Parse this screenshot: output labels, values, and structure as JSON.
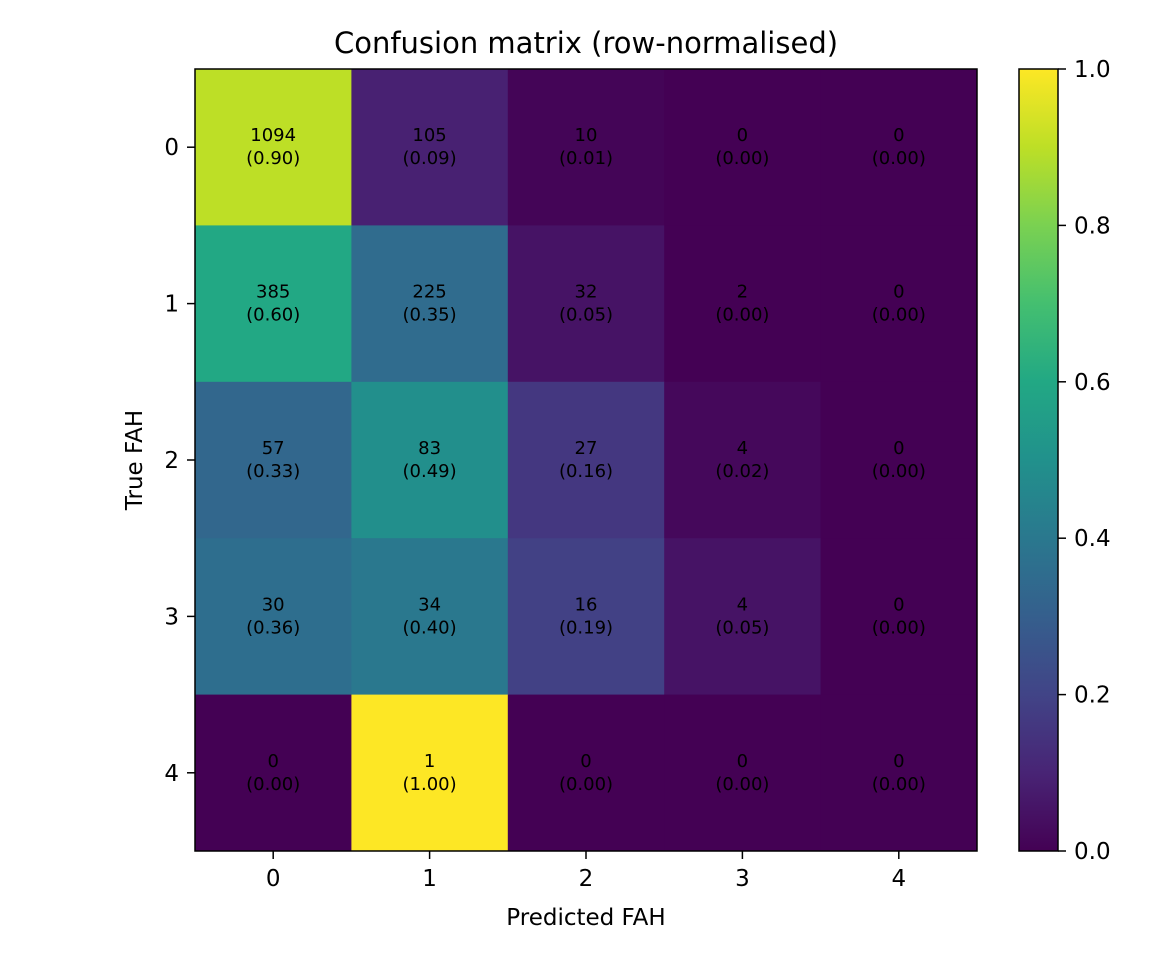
{
  "chart_data": {
    "type": "heatmap",
    "title": "Confusion matrix (row-normalised)",
    "xlabel": "Predicted FAH",
    "ylabel": "True FAH",
    "x_categories": [
      "0",
      "1",
      "2",
      "3",
      "4"
    ],
    "y_categories": [
      "0",
      "1",
      "2",
      "3",
      "4"
    ],
    "counts": [
      [
        1094,
        105,
        10,
        0,
        0
      ],
      [
        385,
        225,
        32,
        2,
        0
      ],
      [
        57,
        83,
        27,
        4,
        0
      ],
      [
        30,
        34,
        16,
        4,
        0
      ],
      [
        0,
        1,
        0,
        0,
        0
      ]
    ],
    "normalized": [
      [
        0.9,
        0.09,
        0.01,
        0.0,
        0.0
      ],
      [
        0.6,
        0.35,
        0.05,
        0.0,
        0.0
      ],
      [
        0.33,
        0.49,
        0.16,
        0.02,
        0.0
      ],
      [
        0.36,
        0.4,
        0.19,
        0.05,
        0.0
      ],
      [
        0.0,
        1.0,
        0.0,
        0.0,
        0.0
      ]
    ],
    "colormap": "viridis",
    "colorbar": {
      "range": [
        0.0,
        1.0
      ],
      "ticks": [
        "0.0",
        "0.2",
        "0.4",
        "0.6",
        "0.8",
        "1.0"
      ]
    },
    "grid": false
  }
}
